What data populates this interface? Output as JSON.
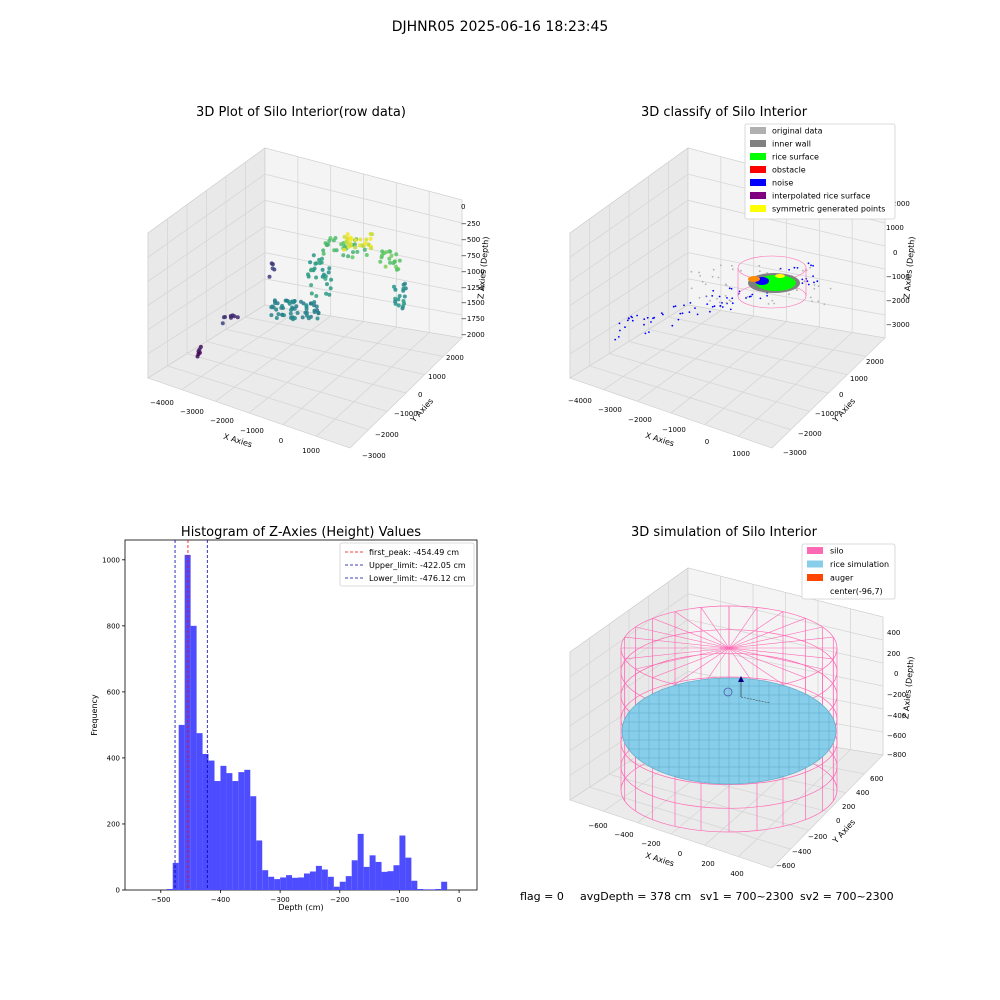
{
  "suptitle": "DJHNR05 2025-06-16 18:23:45",
  "panel1": {
    "title": "3D Plot of Silo Interior(row data)",
    "xlabel": "X Axies",
    "ylabel": "Y Axies",
    "zlabel": "Z Axies (Depth)",
    "xticks": [
      "−4000",
      "−3000",
      "−2000",
      "−1000",
      "0",
      "1000"
    ],
    "yticks": [
      "−3000",
      "−2000",
      "−1000",
      "0",
      "1000",
      "2000"
    ],
    "zticks": [
      "0",
      "−250",
      "−500",
      "−750",
      "−1000",
      "−1250",
      "−1500",
      "−1750",
      "−2000"
    ]
  },
  "panel2": {
    "title": "3D classify of Silo Interior",
    "xlabel": "X Axies",
    "ylabel": "Y Axies",
    "zlabel": "Z Axies (Depth)",
    "xticks": [
      "−4000",
      "−3000",
      "−2000",
      "−1000",
      "0",
      "1000"
    ],
    "yticks": [
      "−3000",
      "−2000",
      "−1000",
      "0",
      "1000",
      "2000"
    ],
    "zticks": [
      "1000",
      "0",
      "−1000",
      "−2000",
      "−3000"
    ],
    "ztick_top": "2000",
    "legend": [
      {
        "label": "original data",
        "color": "#b0b0b0"
      },
      {
        "label": "inner wall",
        "color": "#808080"
      },
      {
        "label": "rice surface",
        "color": "#00ff00"
      },
      {
        "label": "obstacle",
        "color": "#ff0000"
      },
      {
        "label": "noise",
        "color": "#0000ff"
      },
      {
        "label": "interpolated rice surface",
        "color": "#800080"
      },
      {
        "label": "symmetric generated points",
        "color": "#ffff00"
      }
    ]
  },
  "panel3": {
    "title": "Histogram of Z-Axies (Height) Values",
    "legend": [
      {
        "label": "first_peak: -454.49 cm",
        "color": "#ff0000"
      },
      {
        "label": "Upper_limit: -422.05 cm",
        "color": "#0000aa"
      },
      {
        "label": "Lower_limit: -476.12 cm",
        "color": "#0000aa"
      }
    ]
  },
  "panel4": {
    "title": "3D simulation of Silo Interior",
    "xlabel": "X Axies",
    "ylabel": "Y Axies",
    "zlabel": "Z Axies (Depth)",
    "xticks": [
      "−600",
      "−400",
      "−200",
      "0",
      "200",
      "400"
    ],
    "yticks": [
      "−600",
      "−400",
      "−200",
      "0",
      "200",
      "400",
      "600"
    ],
    "zticks": [
      "400",
      "200",
      "0",
      "−200",
      "−400",
      "−600",
      "−800"
    ],
    "legend": [
      {
        "label": "silo",
        "color": "#ff69b4"
      },
      {
        "label": "rice simulation",
        "color": "#87ceeb"
      },
      {
        "label": "auger",
        "color": "#ff4500"
      },
      {
        "label": "center(-96,7)",
        "color": ""
      }
    ]
  },
  "status": {
    "flag": "flag = 0",
    "avg_depth": "avgDepth = 378 cm",
    "sv1": "sv1 = 700~2300",
    "sv2": "sv2 = 700~2300"
  },
  "chart_data": [
    {
      "type": "scatter",
      "title": "3D Plot of Silo Interior(row data)",
      "xlabel": "X Axies",
      "ylabel": "Y Axies",
      "zlabel": "Z Axies (Depth)",
      "xlim": [
        -4300,
        1800
      ],
      "ylim": [
        -3000,
        2200
      ],
      "zlim": [
        -2100,
        100
      ]
    },
    {
      "type": "scatter",
      "title": "3D classify of Silo Interior",
      "xlabel": "X Axies",
      "ylabel": "Y Axies",
      "zlabel": "Z Axies (Depth)",
      "xlim": [
        -4300,
        1800
      ],
      "ylim": [
        -3000,
        2200
      ],
      "zlim": [
        -3500,
        2000
      ],
      "series": [
        "original data",
        "inner wall",
        "rice surface",
        "obstacle",
        "noise",
        "interpolated rice surface",
        "symmetric generated points"
      ]
    },
    {
      "type": "bar",
      "title": "Histogram of Z-Axies (Height) Values",
      "xlabel": "Depth (cm)",
      "ylabel": "Frequency",
      "xlim": [
        -560,
        30
      ],
      "ylim": [
        0,
        1060
      ],
      "xticks": [
        -500,
        -400,
        -300,
        -200,
        -100,
        0
      ],
      "yticks": [
        0,
        200,
        400,
        600,
        800,
        1000
      ],
      "bin_width": 10,
      "bins": [
        {
          "x": -490,
          "y": 3
        },
        {
          "x": -480,
          "y": 82
        },
        {
          "x": -470,
          "y": 500
        },
        {
          "x": -460,
          "y": 1015
        },
        {
          "x": -450,
          "y": 800
        },
        {
          "x": -440,
          "y": 475
        },
        {
          "x": -430,
          "y": 412
        },
        {
          "x": -420,
          "y": 392
        },
        {
          "x": -410,
          "y": 330
        },
        {
          "x": -400,
          "y": 376
        },
        {
          "x": -390,
          "y": 354
        },
        {
          "x": -380,
          "y": 330
        },
        {
          "x": -370,
          "y": 357
        },
        {
          "x": -360,
          "y": 364
        },
        {
          "x": -350,
          "y": 284
        },
        {
          "x": -340,
          "y": 150
        },
        {
          "x": -330,
          "y": 60
        },
        {
          "x": -320,
          "y": 40
        },
        {
          "x": -310,
          "y": 33
        },
        {
          "x": -300,
          "y": 38
        },
        {
          "x": -290,
          "y": 45
        },
        {
          "x": -280,
          "y": 37
        },
        {
          "x": -270,
          "y": 38
        },
        {
          "x": -260,
          "y": 50
        },
        {
          "x": -250,
          "y": 56
        },
        {
          "x": -240,
          "y": 73
        },
        {
          "x": -230,
          "y": 62
        },
        {
          "x": -220,
          "y": 40
        },
        {
          "x": -210,
          "y": 10
        },
        {
          "x": -200,
          "y": 25
        },
        {
          "x": -190,
          "y": 42
        },
        {
          "x": -180,
          "y": 90
        },
        {
          "x": -170,
          "y": 170
        },
        {
          "x": -160,
          "y": 70
        },
        {
          "x": -150,
          "y": 105
        },
        {
          "x": -140,
          "y": 85
        },
        {
          "x": -130,
          "y": 55
        },
        {
          "x": -120,
          "y": 57
        },
        {
          "x": -110,
          "y": 75
        },
        {
          "x": -100,
          "y": 165
        },
        {
          "x": -90,
          "y": 98
        },
        {
          "x": -80,
          "y": 28
        },
        {
          "x": -70,
          "y": 3
        },
        {
          "x": -60,
          "y": 2
        },
        {
          "x": -50,
          "y": 2
        },
        {
          "x": -40,
          "y": 3
        },
        {
          "x": -30,
          "y": 25
        }
      ],
      "lines": [
        {
          "label": "first_peak: -454.49 cm",
          "x": -454.49,
          "color": "#ff0000",
          "style": "dashed"
        },
        {
          "label": "Upper_limit: -422.05 cm",
          "x": -422.05,
          "color": "#0000aa",
          "style": "dashed"
        },
        {
          "label": "Lower_limit: -476.12 cm",
          "x": -476.12,
          "color": "#0000aa",
          "style": "dashed"
        }
      ],
      "bar_color": "#4d4dff"
    },
    {
      "type": "scatter",
      "title": "3D simulation of Silo Interior",
      "xlabel": "X Axies",
      "ylabel": "Y Axies",
      "zlabel": "Z Axies (Depth)",
      "xlim": [
        -700,
        500
      ],
      "ylim": [
        -700,
        700
      ],
      "zlim": [
        -900,
        500
      ],
      "series": [
        "silo",
        "rice simulation",
        "auger",
        "center(-96,7)"
      ]
    }
  ]
}
